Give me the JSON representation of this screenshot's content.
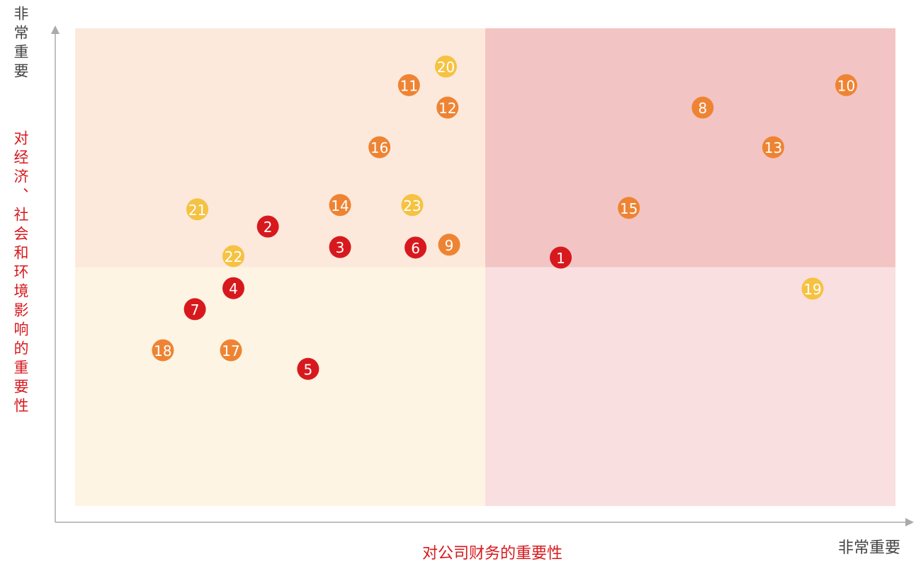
{
  "chart_data": {
    "type": "scatter",
    "y_axis_top_label": "非常重要",
    "ylabel": "对经济、社会和环境影响的重要性",
    "xlabel": "对公司财务的重要性",
    "x_axis_end_label": "非常重要",
    "xlim": [
      0,
      100
    ],
    "ylim": [
      0,
      100
    ],
    "labels": [
      "1",
      "2",
      "3",
      "4",
      "5",
      "6",
      "7",
      "8",
      "9",
      "10",
      "11",
      "12",
      "13",
      "14",
      "15",
      "16",
      "17",
      "18",
      "19",
      "20",
      "21",
      "22",
      "23"
    ],
    "x": [
      59.2,
      23.5,
      32.3,
      19.3,
      28.4,
      41.5,
      14.6,
      76.5,
      45.6,
      94.0,
      40.7,
      45.4,
      85.1,
      32.3,
      67.5,
      37.1,
      19.0,
      10.7,
      89.9,
      45.2,
      14.9,
      19.3,
      41.1
    ],
    "y": [
      52.0,
      58.5,
      54.2,
      45.6,
      28.7,
      54.1,
      41.2,
      83.4,
      54.7,
      88.1,
      88.1,
      83.4,
      75.1,
      63.0,
      62.4,
      75.1,
      32.6,
      32.6,
      45.5,
      92.0,
      62.1,
      52.3,
      63.0
    ],
    "colors": [
      "#d7191e",
      "#d7191e",
      "#d7191e",
      "#d7191e",
      "#d7191e",
      "#d7191e",
      "#d7191e",
      "#ee8433",
      "#ee8433",
      "#ee8433",
      "#ee8433",
      "#ee8433",
      "#ee8433",
      "#ee8433",
      "#ee8433",
      "#ee8433",
      "#ee8433",
      "#ee8433",
      "#f5c242",
      "#f5c242",
      "#f5c242",
      "#f5c242",
      "#f5c242"
    ]
  }
}
